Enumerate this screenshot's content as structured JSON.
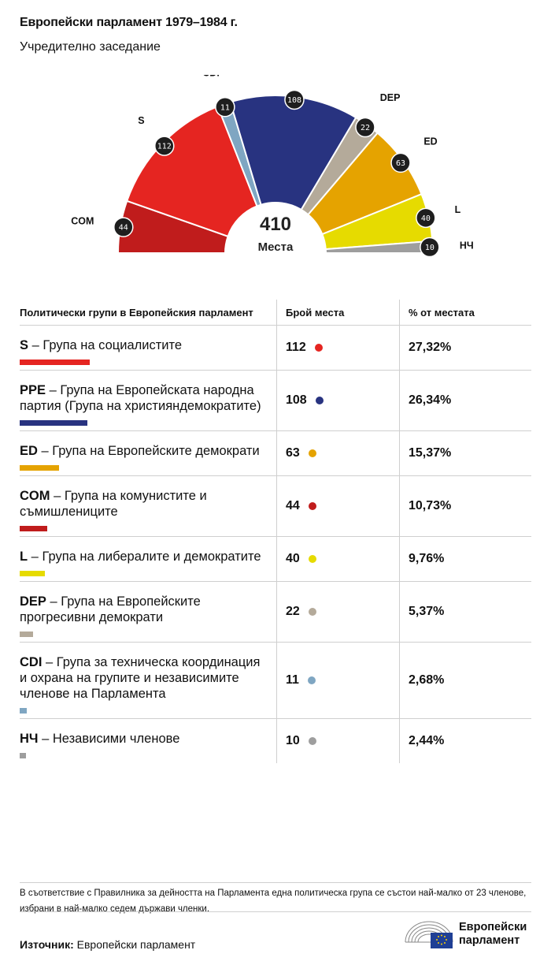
{
  "header": {
    "title": "Европейски парламент 1979–1984 г.",
    "subtitle": "Учредително заседание"
  },
  "center": {
    "total": "410",
    "label": "Места"
  },
  "table": {
    "headers": [
      "Политически групи в Европейския парламент",
      "Брой места",
      "% от местата"
    ]
  },
  "colors": {
    "S": "#e52521",
    "PPE": "#283380",
    "ED": "#e5a300",
    "COM": "#c01c1c",
    "L": "#e6db00",
    "DEP": "#b4aa9a",
    "CDI": "#7fa6c2",
    "NI": "#9e9e9e"
  },
  "chart_data": {
    "type": "hemicycle",
    "total_seats": 410,
    "order_left_to_right": [
      "COM",
      "S",
      "CDI",
      "PPE",
      "DEP",
      "ED",
      "L",
      "НЧ"
    ],
    "groups": [
      {
        "code": "S",
        "name": "Група на социалистите",
        "seats": 112,
        "seats_label": "112",
        "percent": "27,32%",
        "color": "#e52521"
      },
      {
        "code": "PPE",
        "name": "Група на Европейската народна партия (Група на християндемократите)",
        "seats": 108,
        "seats_label": "108",
        "percent": "26,34%",
        "color": "#283380"
      },
      {
        "code": "ED",
        "name": "Група на Европейските демократи",
        "seats": 63,
        "seats_label": "63",
        "percent": "15,37%",
        "color": "#e5a300"
      },
      {
        "code": "COM",
        "name": "Група на комунистите и съмишлениците",
        "seats": 44,
        "seats_label": "44",
        "percent": "10,73%",
        "color": "#c01c1c"
      },
      {
        "code": "L",
        "name": "Група на либералите и демократите",
        "seats": 40,
        "seats_label": "40",
        "percent": "9,76%",
        "color": "#e6db00"
      },
      {
        "code": "DEP",
        "name": "Група на Европейските прогресивни демократи",
        "seats": 22,
        "seats_label": "22",
        "percent": "5,37%",
        "color": "#b4aa9a"
      },
      {
        "code": "CDI",
        "name": "Група за техническа координация и охрана на групите и независимите членове на Парламента",
        "seats": 11,
        "seats_label": "11",
        "percent": "2,68%",
        "color": "#7fa6c2"
      },
      {
        "code": "НЧ",
        "name": "Независими членове",
        "seats": 10,
        "seats_label": "10",
        "percent": "2,44%",
        "color": "#9e9e9e"
      }
    ]
  },
  "footnote": "В съответствие с Правилника за дейността на Парламента една политическа група се състои най-малко от 23 членове, избрани в най-малко седем държави членки.",
  "source": {
    "label": "Източник:",
    "value": "Европейски парламент"
  },
  "logo": {
    "line1": "Европейски",
    "line2": "парламент"
  }
}
